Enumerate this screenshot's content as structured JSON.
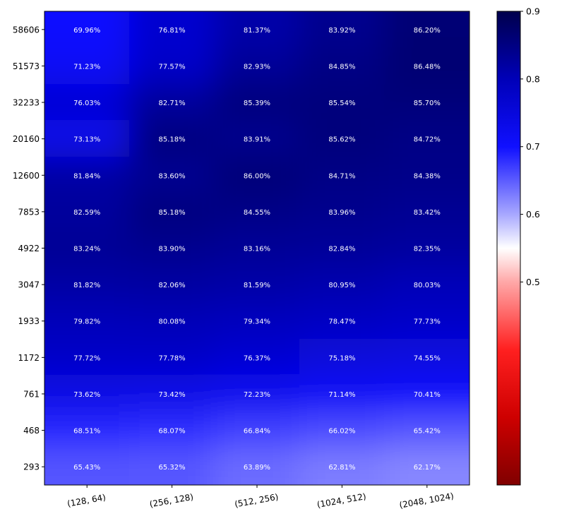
{
  "chart_data": {
    "type": "heatmap",
    "title": "",
    "xlabel": "",
    "ylabel": "",
    "x_categories": [
      "(128, 64)",
      "(256, 128)",
      "(512, 256)",
      "(1024, 512)",
      "(2048, 1024)"
    ],
    "y_categories": [
      "58606",
      "51573",
      "32233",
      "20160",
      "12600",
      "7853",
      "4922",
      "3047",
      "1933",
      "1172",
      "761",
      "468",
      "293"
    ],
    "values": [
      [
        0.6996,
        0.7681,
        0.8137,
        0.8392,
        0.862
      ],
      [
        0.7123,
        0.7757,
        0.8293,
        0.8485,
        0.8648
      ],
      [
        0.7603,
        0.8271,
        0.8539,
        0.8554,
        0.857
      ],
      [
        0.7313,
        0.8518,
        0.8391,
        0.8562,
        0.8472
      ],
      [
        0.8184,
        0.836,
        0.86,
        0.8471,
        0.8438
      ],
      [
        0.8259,
        0.8518,
        0.8455,
        0.8396,
        0.8342
      ],
      [
        0.8324,
        0.839,
        0.8316,
        0.8284,
        0.8235
      ],
      [
        0.8182,
        0.8206,
        0.8159,
        0.8095,
        0.8003
      ],
      [
        0.7982,
        0.8008,
        0.7934,
        0.7847,
        0.7773
      ],
      [
        0.7772,
        0.7778,
        0.7637,
        0.7518,
        0.7455
      ],
      [
        0.7362,
        0.7342,
        0.7223,
        0.7114,
        0.7041
      ],
      [
        0.6851,
        0.6807,
        0.6684,
        0.6602,
        0.6542
      ],
      [
        0.6543,
        0.6532,
        0.6389,
        0.6281,
        0.6217
      ]
    ],
    "cell_labels": [
      [
        "69.96%",
        "76.81%",
        "81.37%",
        "83.92%",
        "86.20%"
      ],
      [
        "71.23%",
        "77.57%",
        "82.93%",
        "84.85%",
        "86.48%"
      ],
      [
        "76.03%",
        "82.71%",
        "85.39%",
        "85.54%",
        "85.70%"
      ],
      [
        "73.13%",
        "85.18%",
        "83.91%",
        "85.62%",
        "84.72%"
      ],
      [
        "81.84%",
        "83.60%",
        "86.00%",
        "84.71%",
        "84.38%"
      ],
      [
        "82.59%",
        "85.18%",
        "84.55%",
        "83.96%",
        "83.42%"
      ],
      [
        "83.24%",
        "83.90%",
        "83.16%",
        "82.84%",
        "82.35%"
      ],
      [
        "81.82%",
        "82.06%",
        "81.59%",
        "80.95%",
        "80.03%"
      ],
      [
        "79.82%",
        "80.08%",
        "79.34%",
        "78.47%",
        "77.73%"
      ],
      [
        "77.72%",
        "77.78%",
        "76.37%",
        "75.18%",
        "74.55%"
      ],
      [
        "73.62%",
        "73.42%",
        "72.23%",
        "71.14%",
        "70.41%"
      ],
      [
        "68.51%",
        "68.07%",
        "66.84%",
        "66.02%",
        "65.42%"
      ],
      [
        "65.43%",
        "65.32%",
        "63.89%",
        "62.81%",
        "62.17%"
      ]
    ],
    "colormap": "seismic_r",
    "colorbar": {
      "range": [
        0.2,
        0.9
      ],
      "ticks": [
        0.5,
        0.6,
        0.7,
        0.8,
        0.9
      ],
      "tick_labels": [
        "0.5",
        "0.6",
        "0.7",
        "0.8",
        "0.9"
      ]
    },
    "interpolation": "smooth",
    "grid": false,
    "colorbar_placement": "right"
  }
}
